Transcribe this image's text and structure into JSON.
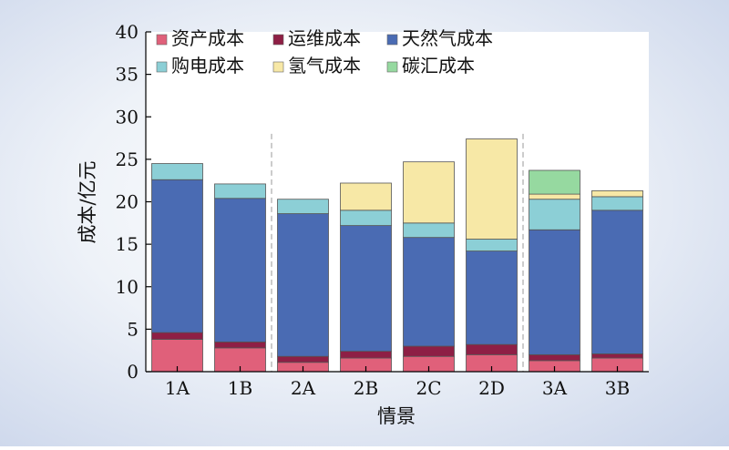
{
  "chart_data": {
    "type": "bar",
    "stacked": true,
    "xlabel": "情景",
    "ylabel": "成本/亿元",
    "ylim": [
      0,
      40
    ],
    "yticks": [
      0,
      5,
      10,
      15,
      20,
      25,
      30,
      35,
      40
    ],
    "grid": false,
    "legend_position": "top-left",
    "group_separators_after": [
      "1B",
      "2D"
    ],
    "categories": [
      "1A",
      "1B",
      "2A",
      "2B",
      "2C",
      "2D",
      "3A",
      "3B"
    ],
    "series": [
      {
        "name": "资产成本",
        "color": "#e0607a",
        "values": [
          3.8,
          2.8,
          1.1,
          1.6,
          1.8,
          2.0,
          1.3,
          1.6
        ]
      },
      {
        "name": "运维成本",
        "color": "#8e1f45",
        "values": [
          0.8,
          0.7,
          0.7,
          0.8,
          1.2,
          1.2,
          0.7,
          0.5
        ]
      },
      {
        "name": "天然气成本",
        "color": "#4a6bb3",
        "values": [
          18.0,
          16.9,
          16.8,
          14.8,
          12.8,
          11.0,
          14.7,
          16.9
        ]
      },
      {
        "name": "购电成本",
        "color": "#8ccfd6",
        "values": [
          1.9,
          1.7,
          1.7,
          1.8,
          1.7,
          1.4,
          3.6,
          1.6
        ]
      },
      {
        "name": "氢气成本",
        "color": "#f7e8a6",
        "values": [
          0,
          0,
          0,
          3.2,
          7.2,
          11.8,
          0.6,
          0.7
        ]
      },
      {
        "name": "碳汇成本",
        "color": "#96d9a0",
        "values": [
          0,
          0,
          0,
          0,
          0,
          0,
          2.8,
          0
        ]
      }
    ]
  }
}
